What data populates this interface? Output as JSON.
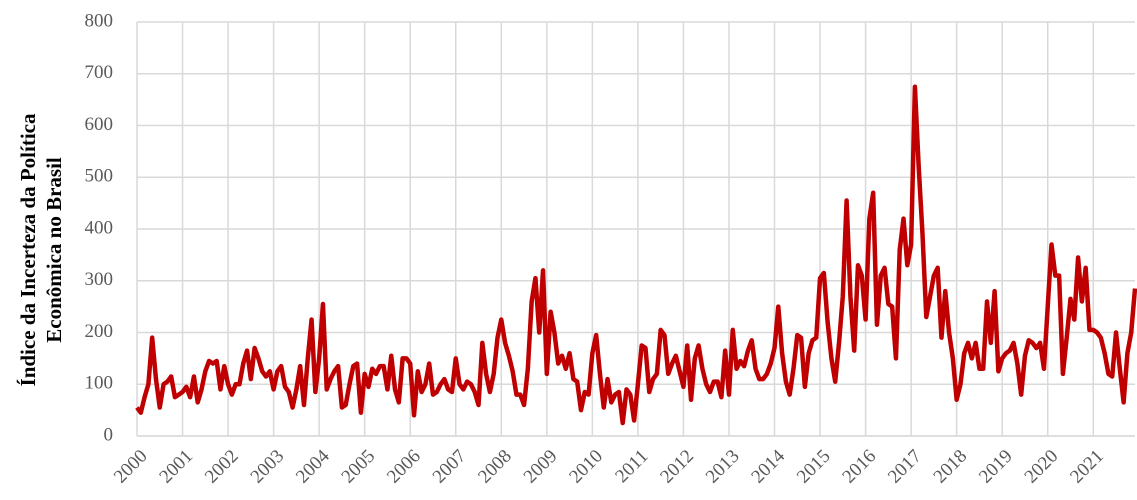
{
  "chart_data": {
    "type": "line",
    "y_label_lines": [
      "Índice da Incerteza da Política",
      "Econômica no Brasil"
    ],
    "categories": [
      "2000",
      null,
      null,
      null,
      null,
      null,
      null,
      null,
      null,
      null,
      null,
      null,
      "2001",
      null,
      null,
      null,
      null,
      null,
      null,
      null,
      null,
      null,
      null,
      null,
      "2002",
      null,
      null,
      null,
      null,
      null,
      null,
      null,
      null,
      null,
      null,
      null,
      "2003",
      null,
      null,
      null,
      null,
      null,
      null,
      null,
      null,
      null,
      null,
      null,
      "2004",
      null,
      null,
      null,
      null,
      null,
      null,
      null,
      null,
      null,
      null,
      null,
      "2005",
      null,
      null,
      null,
      null,
      null,
      null,
      null,
      null,
      null,
      null,
      null,
      "2006",
      null,
      null,
      null,
      null,
      null,
      null,
      null,
      null,
      null,
      null,
      null,
      "2007",
      null,
      null,
      null,
      null,
      null,
      null,
      null,
      null,
      null,
      null,
      null,
      "2008",
      null,
      null,
      null,
      null,
      null,
      null,
      null,
      null,
      null,
      null,
      null,
      "2009",
      null,
      null,
      null,
      null,
      null,
      null,
      null,
      null,
      null,
      null,
      null,
      "2010",
      null,
      null,
      null,
      null,
      null,
      null,
      null,
      null,
      null,
      null,
      null,
      "2011",
      null,
      null,
      null,
      null,
      null,
      null,
      null,
      null,
      null,
      null,
      null,
      "2012",
      null,
      null,
      null,
      null,
      null,
      null,
      null,
      null,
      null,
      null,
      null,
      "2013",
      null,
      null,
      null,
      null,
      null,
      null,
      null,
      null,
      null,
      null,
      null,
      "2014",
      null,
      null,
      null,
      null,
      null,
      null,
      null,
      null,
      null,
      null,
      null,
      "2015",
      null,
      null,
      null,
      null,
      null,
      null,
      null,
      null,
      null,
      null,
      null,
      "2016",
      null,
      null,
      null,
      null,
      null,
      null,
      null,
      null,
      null,
      null,
      null,
      "2017",
      null,
      null,
      null,
      null,
      null,
      null,
      null,
      null,
      null,
      null,
      null,
      "2018",
      null,
      null,
      null,
      null,
      null,
      null,
      null,
      null,
      null,
      null,
      null,
      "2019",
      null,
      null,
      null,
      null,
      null,
      null,
      null,
      null,
      null,
      null,
      null,
      "2020",
      null,
      null,
      null,
      null,
      null,
      null,
      null,
      null,
      null,
      null,
      null,
      "2021",
      null,
      null,
      null,
      null,
      null,
      null,
      null,
      null,
      null,
      null,
      null
    ],
    "values": [
      55,
      45,
      75,
      100,
      190,
      110,
      55,
      100,
      105,
      115,
      75,
      80,
      85,
      95,
      75,
      115,
      65,
      90,
      125,
      145,
      140,
      145,
      90,
      135,
      100,
      80,
      100,
      100,
      140,
      165,
      110,
      170,
      150,
      125,
      115,
      125,
      90,
      125,
      135,
      95,
      85,
      55,
      90,
      135,
      60,
      150,
      225,
      85,
      150,
      255,
      90,
      110,
      125,
      135,
      55,
      60,
      100,
      135,
      140,
      45,
      120,
      95,
      130,
      120,
      135,
      135,
      90,
      155,
      90,
      65,
      150,
      150,
      140,
      40,
      125,
      85,
      100,
      140,
      80,
      85,
      100,
      110,
      90,
      85,
      150,
      100,
      90,
      105,
      100,
      85,
      60,
      180,
      120,
      85,
      120,
      190,
      225,
      180,
      155,
      125,
      80,
      80,
      60,
      130,
      260,
      305,
      200,
      320,
      120,
      240,
      200,
      140,
      155,
      130,
      160,
      110,
      105,
      50,
      85,
      80,
      160,
      195,
      120,
      55,
      110,
      65,
      80,
      85,
      25,
      90,
      80,
      30,
      100,
      175,
      170,
      85,
      110,
      120,
      205,
      195,
      120,
      140,
      155,
      125,
      95,
      175,
      70,
      150,
      175,
      130,
      100,
      85,
      105,
      105,
      75,
      165,
      80,
      205,
      130,
      145,
      135,
      165,
      185,
      130,
      110,
      110,
      120,
      140,
      170,
      250,
      160,
      105,
      80,
      130,
      195,
      190,
      95,
      160,
      185,
      190,
      305,
      315,
      220,
      150,
      105,
      180,
      270,
      455,
      270,
      165,
      330,
      310,
      225,
      420,
      470,
      215,
      310,
      325,
      255,
      250,
      150,
      360,
      420,
      330,
      370,
      675,
      520,
      390,
      230,
      270,
      310,
      325,
      190,
      280,
      200,
      150,
      70,
      100,
      160,
      180,
      150,
      180,
      130,
      130,
      260,
      180,
      280,
      125,
      150,
      160,
      165,
      180,
      140,
      80,
      155,
      185,
      180,
      170,
      180,
      130,
      250,
      370,
      310,
      310,
      120,
      190,
      265,
      225,
      345,
      260,
      325,
      205,
      205,
      200,
      190,
      160,
      120,
      115,
      200,
      130,
      65,
      160,
      200,
      285
    ],
    "color": "#c00000",
    "ylim": [
      0,
      800
    ],
    "yticks": [
      0,
      100,
      200,
      300,
      400,
      500,
      600,
      700,
      800
    ],
    "grid": true
  }
}
